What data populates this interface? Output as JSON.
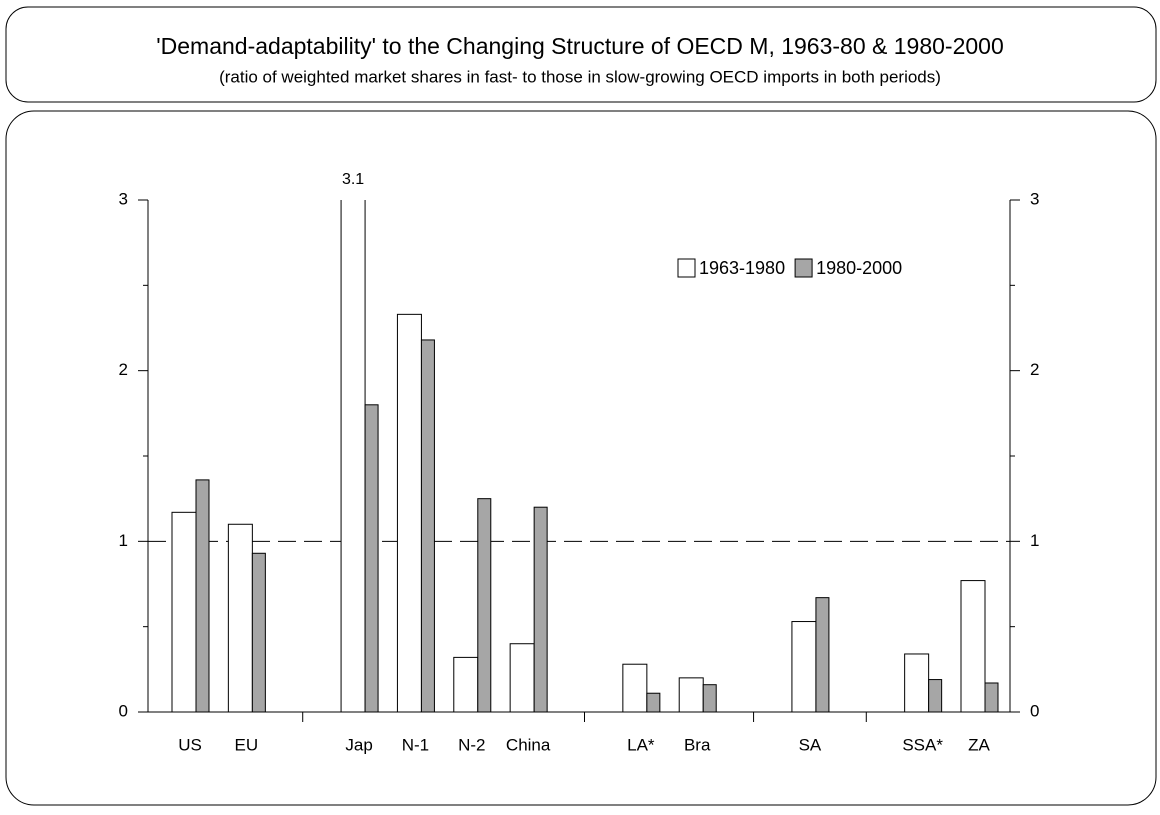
{
  "chart_data": {
    "type": "bar",
    "title": "'Demand-adaptability' to the Changing Structure of OECD M, 1963-80 & 1980-2000",
    "subtitle": "(ratio of weighted market shares in fast- to those in slow-growing OECD imports in both periods)",
    "categories": [
      "US",
      "EU",
      null,
      "Jap",
      "N-1",
      "N-2",
      "China",
      null,
      "LA*",
      "Bra",
      null,
      "SA",
      null,
      "SSA*",
      "ZA"
    ],
    "series": [
      {
        "name": "1963-1980",
        "color": "#ffffff",
        "values": [
          1.17,
          1.1,
          null,
          3.1,
          2.33,
          0.32,
          0.4,
          null,
          0.28,
          0.2,
          null,
          0.53,
          null,
          0.34,
          0.77
        ],
        "value_labels": [
          null,
          null,
          null,
          "3.1",
          null,
          null,
          null,
          null,
          null,
          null,
          null,
          null,
          null,
          null,
          null
        ]
      },
      {
        "name": "1980-2000",
        "color": "#a6a6a6",
        "values": [
          1.36,
          0.93,
          null,
          1.8,
          2.18,
          1.25,
          1.2,
          null,
          0.11,
          0.16,
          null,
          0.67,
          null,
          0.19,
          0.17
        ]
      }
    ],
    "ylim": [
      0,
      3
    ],
    "yticks": [
      0,
      1,
      2,
      3
    ],
    "minor_yticks": [
      0.5,
      1.5,
      2.5
    ],
    "y2lim": [
      0,
      3
    ],
    "y2ticks": [
      0,
      1,
      2,
      3
    ],
    "reference_line": 1,
    "legend": "upper right"
  }
}
